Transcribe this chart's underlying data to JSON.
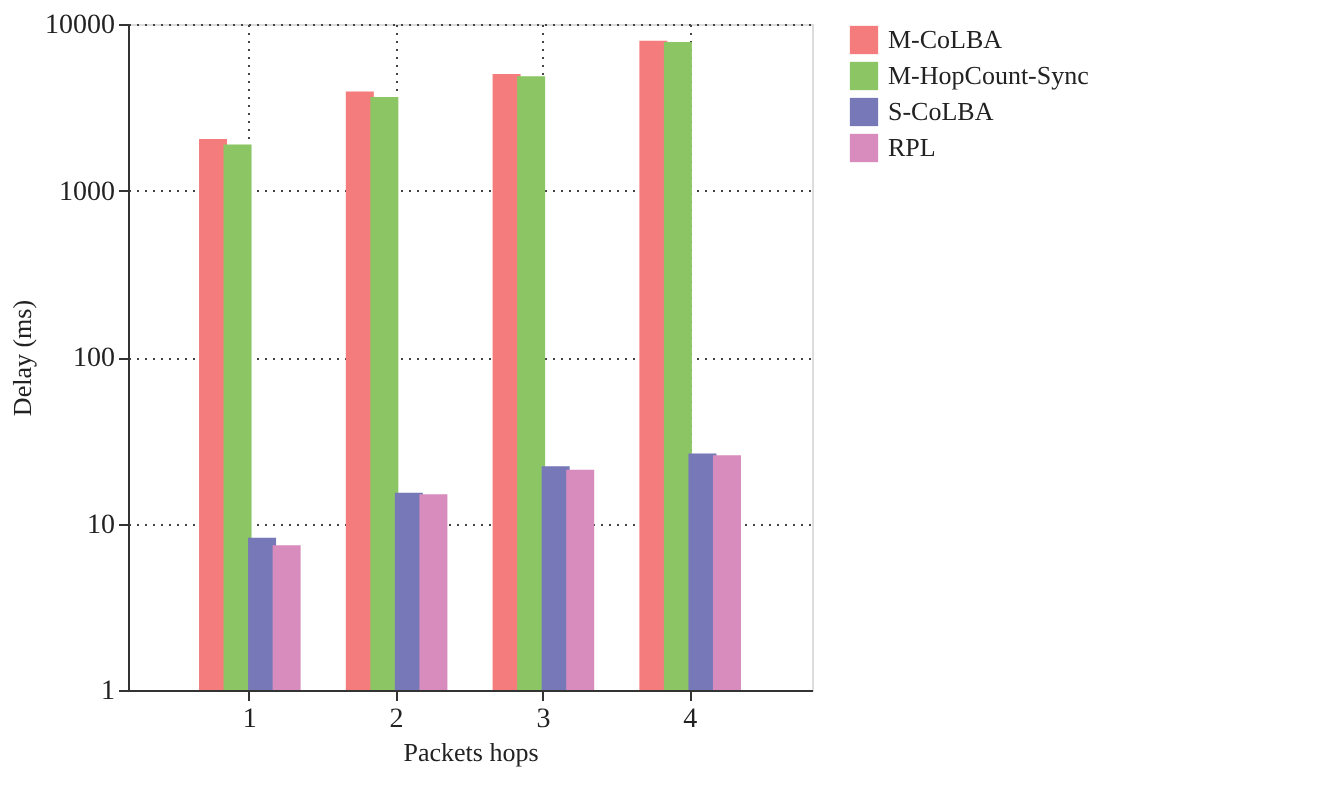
{
  "chart_data": {
    "type": "bar",
    "xlabel": "Packets hops",
    "ylabel": "Delay (ms)",
    "categories": [
      "1",
      "2",
      "3",
      "4"
    ],
    "series": [
      {
        "name": "M-CoLBA",
        "color": "#f47c7c",
        "values": [
          2040,
          3930,
          5000,
          7940
        ]
      },
      {
        "name": "M-HopCount-Sync",
        "color": "#8cc664",
        "values": [
          1890,
          3650,
          4860,
          7800
        ]
      },
      {
        "name": "S-CoLBA",
        "color": "#7678b8",
        "values": [
          8.2,
          15.3,
          22.1,
          26.3
        ]
      },
      {
        "name": "RPL",
        "color": "#d88bbd",
        "values": [
          7.4,
          15.0,
          21.0,
          25.7
        ]
      }
    ],
    "log": "y",
    "ylim": [
      1,
      10000
    ],
    "yticks": [
      1,
      10,
      100,
      1000,
      10000
    ],
    "grid": true,
    "legend": "top right"
  }
}
